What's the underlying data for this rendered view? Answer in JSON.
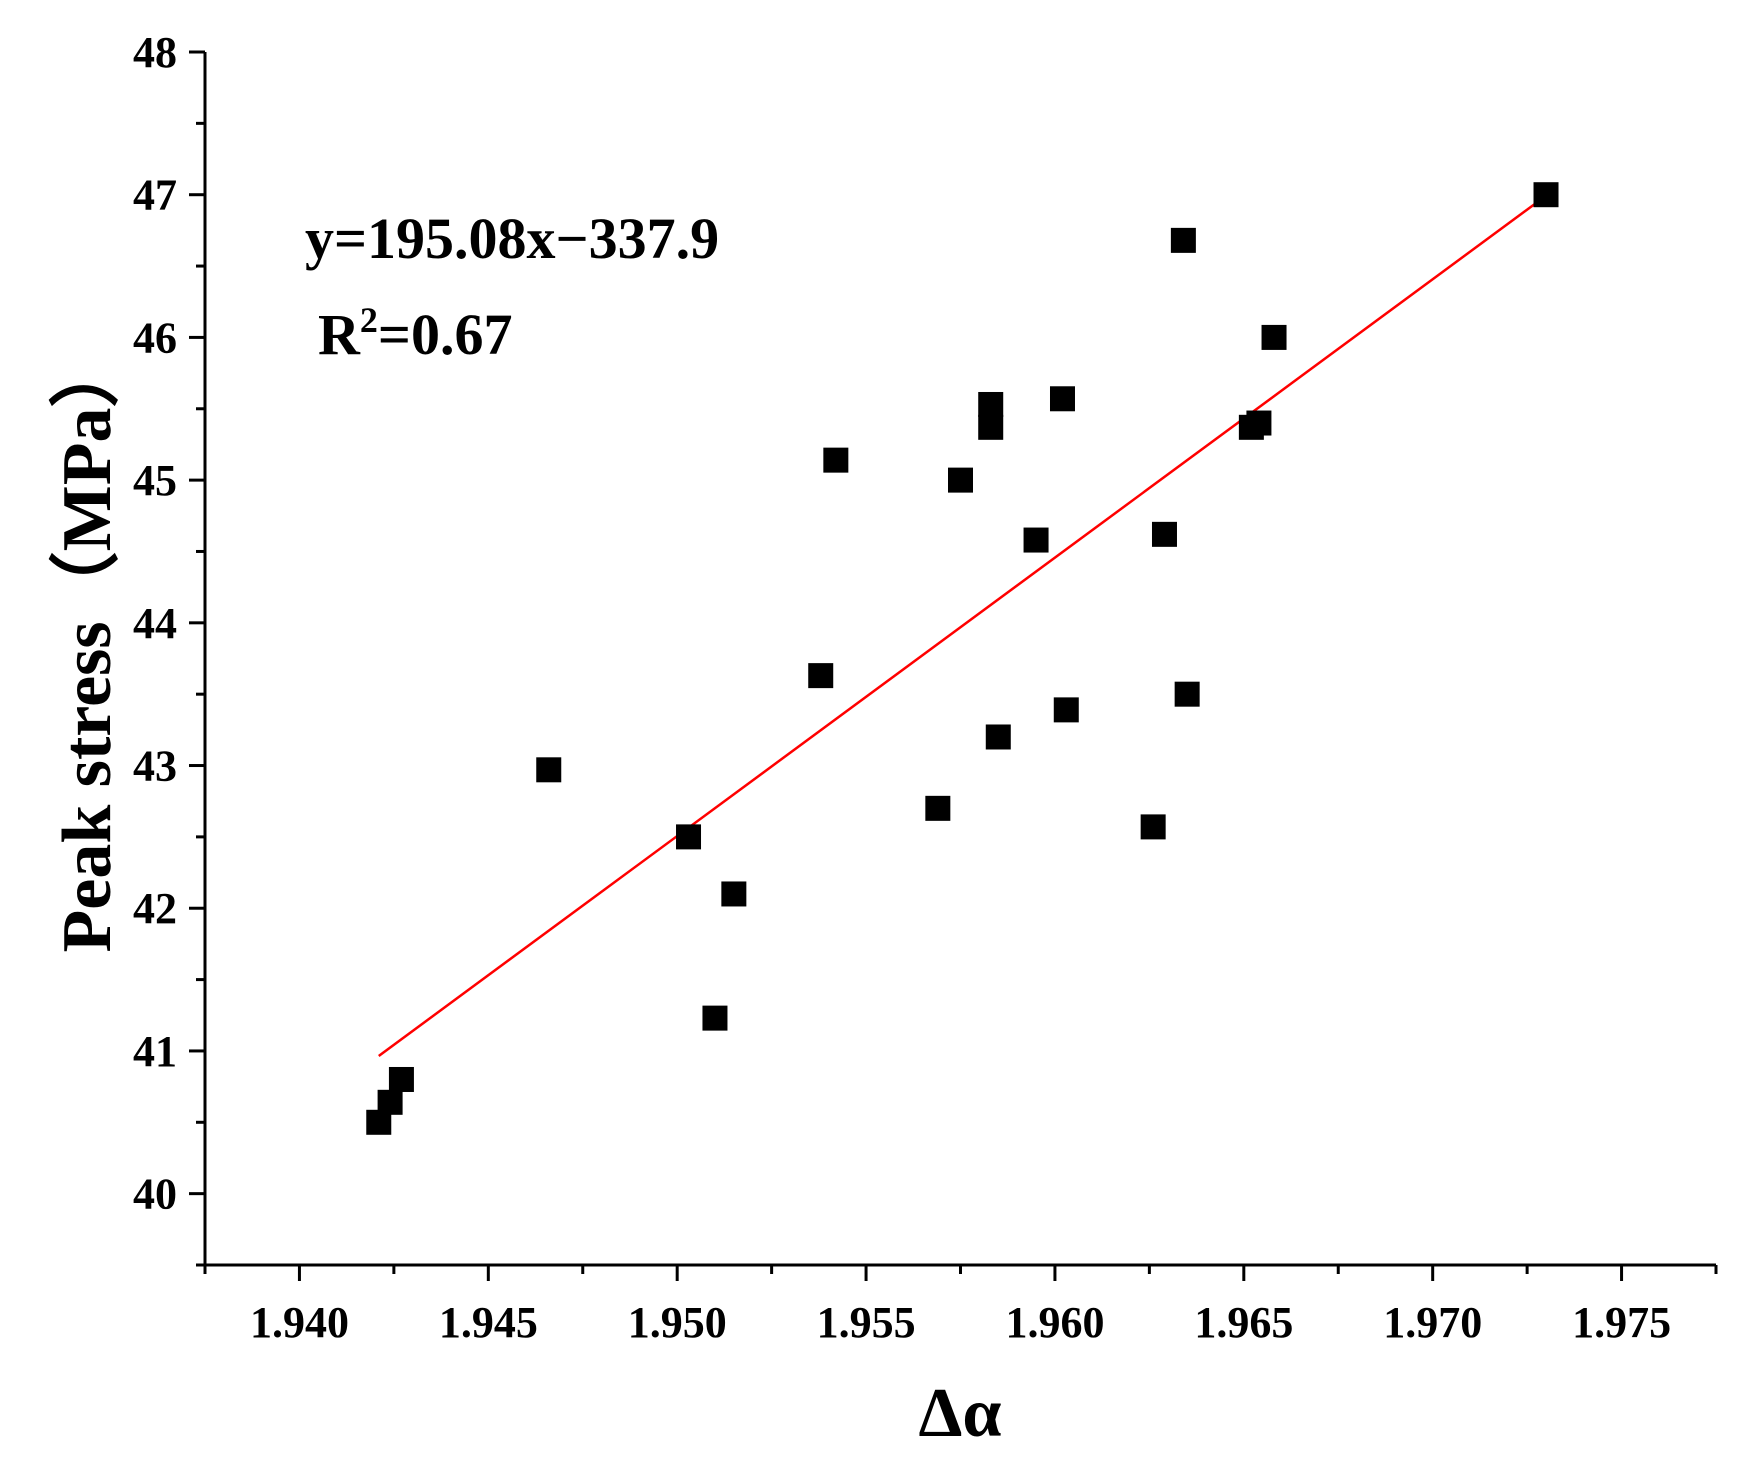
{
  "chart_data": {
    "type": "scatter",
    "xlabel": "Δα",
    "ylabel": "Peak stress（MPa）",
    "xlim": [
      1.9375,
      1.9775
    ],
    "ylim": [
      39.5,
      48
    ],
    "x_ticks": [
      "1.940",
      "1.945",
      "1.950",
      "1.955",
      "1.960",
      "1.965",
      "1.970",
      "1.975"
    ],
    "y_ticks": [
      "40",
      "41",
      "42",
      "43",
      "44",
      "45",
      "46",
      "47",
      "48"
    ],
    "series": [
      {
        "marker": "square",
        "color": "#000000",
        "points": [
          [
            1.9421,
            40.5
          ],
          [
            1.9424,
            40.64
          ],
          [
            1.9427,
            40.8
          ],
          [
            1.9466,
            42.97
          ],
          [
            1.9503,
            42.5
          ],
          [
            1.951,
            41.23
          ],
          [
            1.9515,
            42.1
          ],
          [
            1.9538,
            43.63
          ],
          [
            1.9542,
            45.14
          ],
          [
            1.9569,
            42.7
          ],
          [
            1.9575,
            45.0
          ],
          [
            1.9583,
            45.53
          ],
          [
            1.9583,
            45.37
          ],
          [
            1.9585,
            43.2
          ],
          [
            1.9595,
            44.58
          ],
          [
            1.9602,
            45.57
          ],
          [
            1.9603,
            43.39
          ],
          [
            1.9626,
            42.57
          ],
          [
            1.9629,
            44.62
          ],
          [
            1.9634,
            46.68
          ],
          [
            1.9635,
            43.5
          ],
          [
            1.9652,
            45.37
          ],
          [
            1.9654,
            45.4
          ],
          [
            1.9658,
            46.0
          ],
          [
            1.973,
            47.0
          ]
        ]
      }
    ],
    "fit_line": {
      "color": "#ff0000",
      "slope": 195.08,
      "intercept": -337.9,
      "x_range": [
        1.9421,
        1.973
      ]
    },
    "annotations": {
      "equation": "y=195.08x−337.9",
      "r2_prefix": "R",
      "r2_sup": "2",
      "r2_value": "=0.67"
    }
  }
}
